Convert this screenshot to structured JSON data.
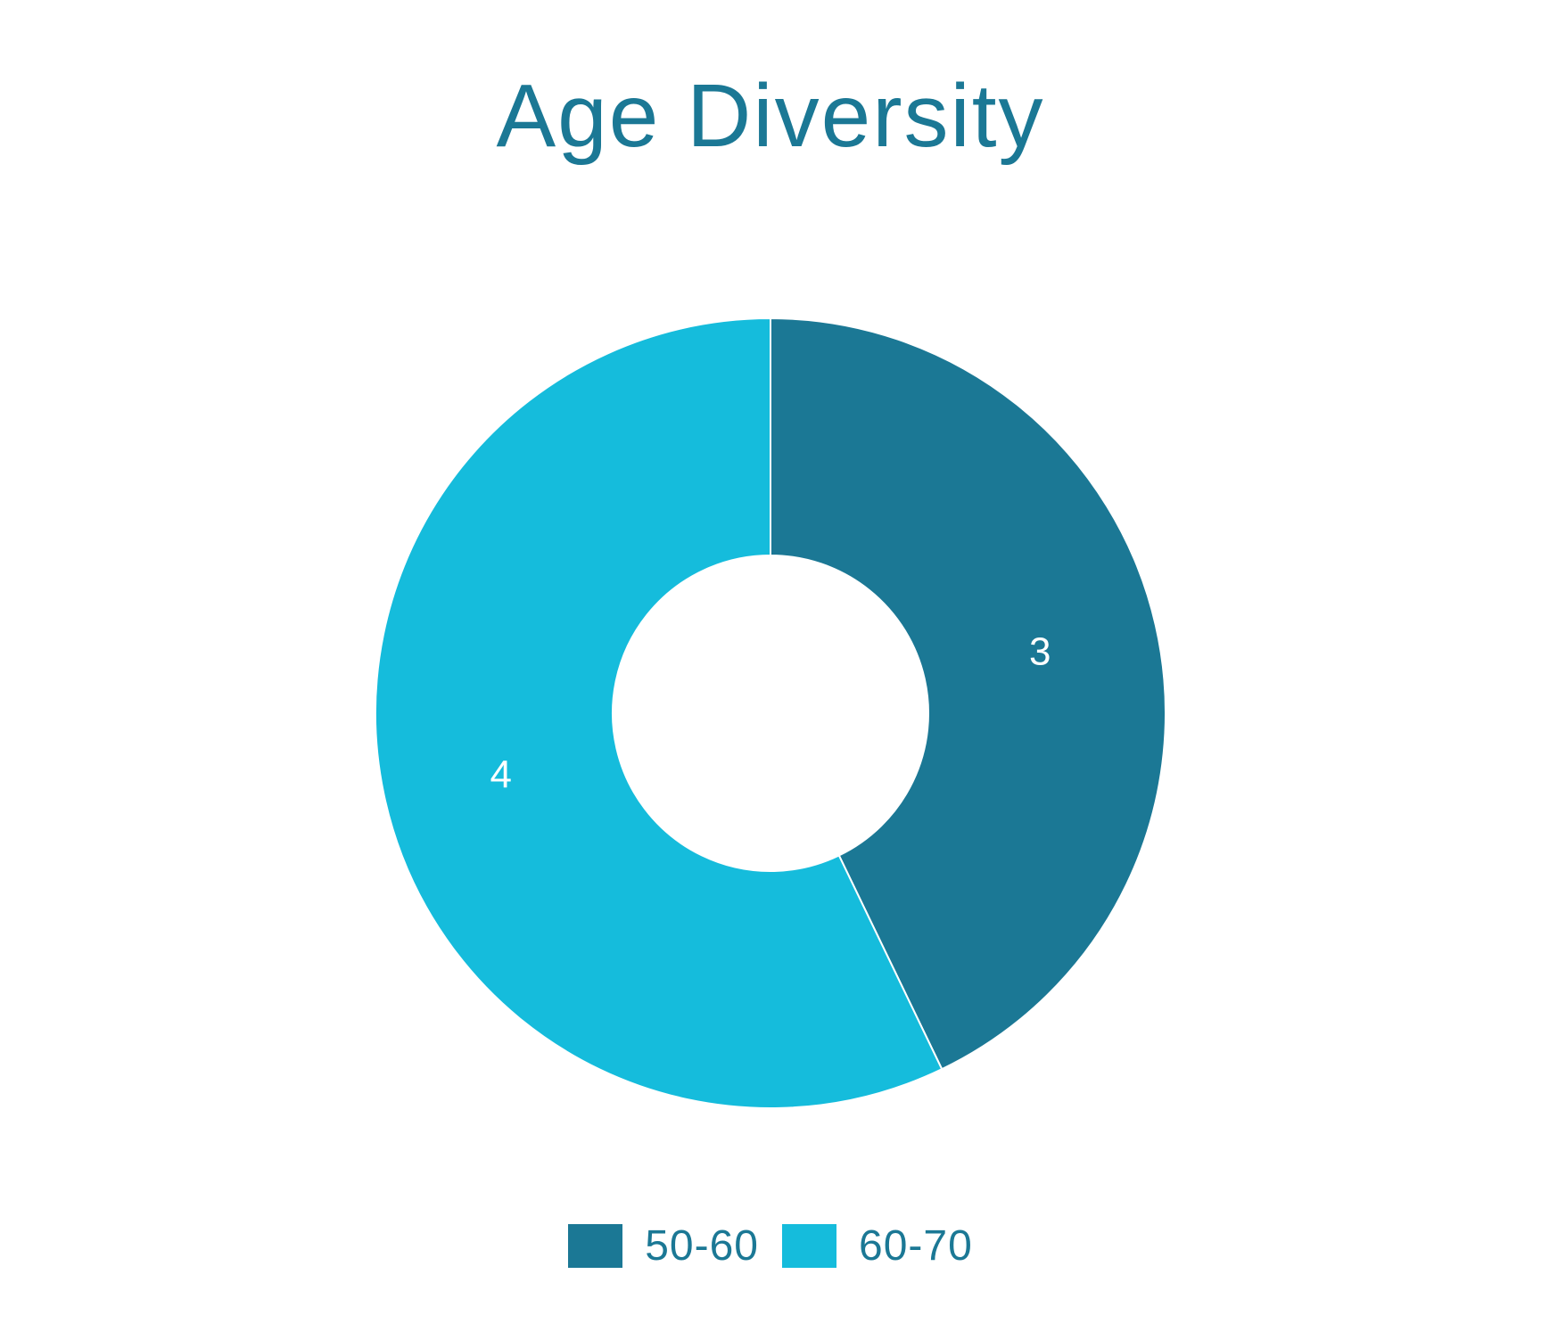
{
  "colors": {
    "title": "#1b7895",
    "legend_text": "#1b7895",
    "data_label": "#ffffff",
    "separator": "#ffffff"
  },
  "chart_data": {
    "type": "pie",
    "donut": true,
    "title": "Age Diversity",
    "series": [
      {
        "name": "50-60",
        "value": 3,
        "color": "#1b7895",
        "label": "3"
      },
      {
        "name": "60-70",
        "value": 4,
        "color": "#15bcdc",
        "label": "4"
      }
    ],
    "legend": "bottom"
  }
}
